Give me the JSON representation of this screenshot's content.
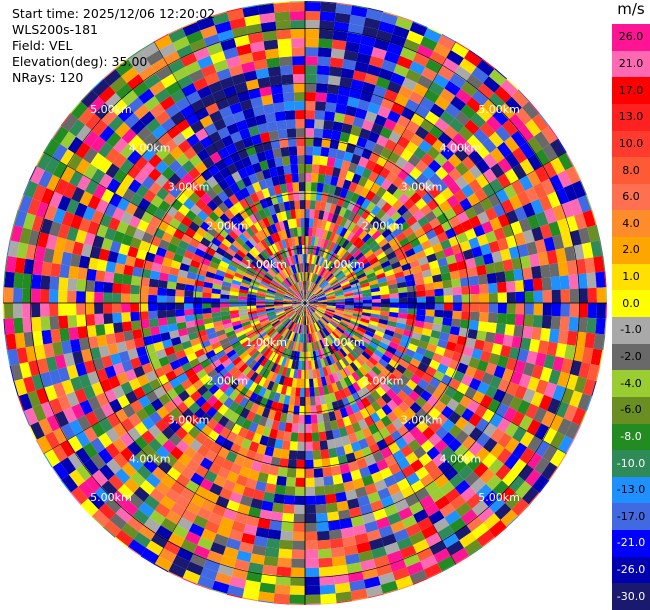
{
  "header": {
    "start_time": "Start time: 2025/12/06 12:20:02",
    "station": "WLS200s-181",
    "field": "Field: VEL",
    "elevation": "Elevation(deg): 35.00",
    "nrays": "NRays: 120"
  },
  "chart_data": {
    "type": "heatmap",
    "projection": "polar-ppi",
    "nrays": 120,
    "range_km_max": 5.5,
    "range_rings_km": [
      1,
      2,
      3,
      4,
      5
    ],
    "range_ring_labels": [
      "1.00km",
      "2.00km",
      "3.00km",
      "4.00km",
      "5.00km"
    ],
    "colorbar": {
      "unit": "m/s",
      "ticks": [
        "26.0",
        "21.0",
        "17.0",
        "13.0",
        "10.0",
        "8.0",
        "6.0",
        "4.0",
        "2.0",
        "1.0",
        "0.0",
        "-1.0",
        "-2.0",
        "-4.0",
        "-6.0",
        "-8.0",
        "-10.0",
        "-13.0",
        "-17.0",
        "-21.0",
        "-26.0",
        "-30.0"
      ],
      "colors": [
        "#ff1493",
        "#ff69b4",
        "#ff0000",
        "#ff2020",
        "#ff3b30",
        "#ff5a36",
        "#ff7050",
        "#ff8c2a",
        "#ffa500",
        "#ffe000",
        "#ffff00",
        "#a9a9a9",
        "#696969",
        "#9acd32",
        "#6b8e23",
        "#228b22",
        "#2e8b57",
        "#1e90ff",
        "#4169e1",
        "#0000ff",
        "#0000b0",
        "#191970"
      ]
    }
  }
}
